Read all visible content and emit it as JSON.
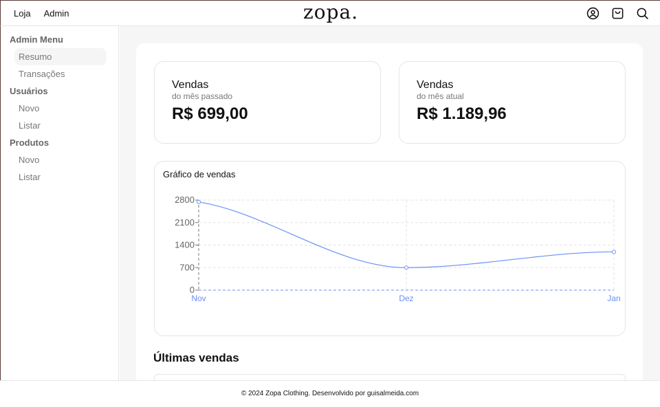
{
  "header": {
    "nav": [
      "Loja",
      "Admin"
    ],
    "logo": "zopa.",
    "icons": [
      "user-icon",
      "bag-icon",
      "search-icon"
    ]
  },
  "sidebar": {
    "sections": [
      {
        "title": "Admin Menu",
        "items": [
          "Resumo",
          "Transações"
        ]
      },
      {
        "title": "Usuários",
        "items": [
          "Novo",
          "Listar"
        ]
      },
      {
        "title": "Produtos",
        "items": [
          "Novo",
          "Listar"
        ]
      }
    ],
    "active": "Resumo"
  },
  "cards": [
    {
      "title": "Vendas",
      "subtitle": "do mês passado",
      "value": "R$ 699,00"
    },
    {
      "title": "Vendas",
      "subtitle": "do mês atual",
      "value": "R$ 1.189,96"
    }
  ],
  "chart_data": {
    "type": "line",
    "title": "Gráfico de vendas",
    "categories": [
      "Nov",
      "Dez",
      "Jan"
    ],
    "values": [
      2740,
      699,
      1189.96
    ],
    "ylim": [
      0,
      2800
    ],
    "yticks": [
      0,
      700,
      1400,
      2100,
      2800
    ],
    "grid": true,
    "color": "#6b8ff5"
  },
  "latest_sales": {
    "title": "Últimas vendas"
  },
  "footer": {
    "text": "© 2024 Zopa Clothing. Desenvolvido por ",
    "author": "guisalmeida.com"
  }
}
